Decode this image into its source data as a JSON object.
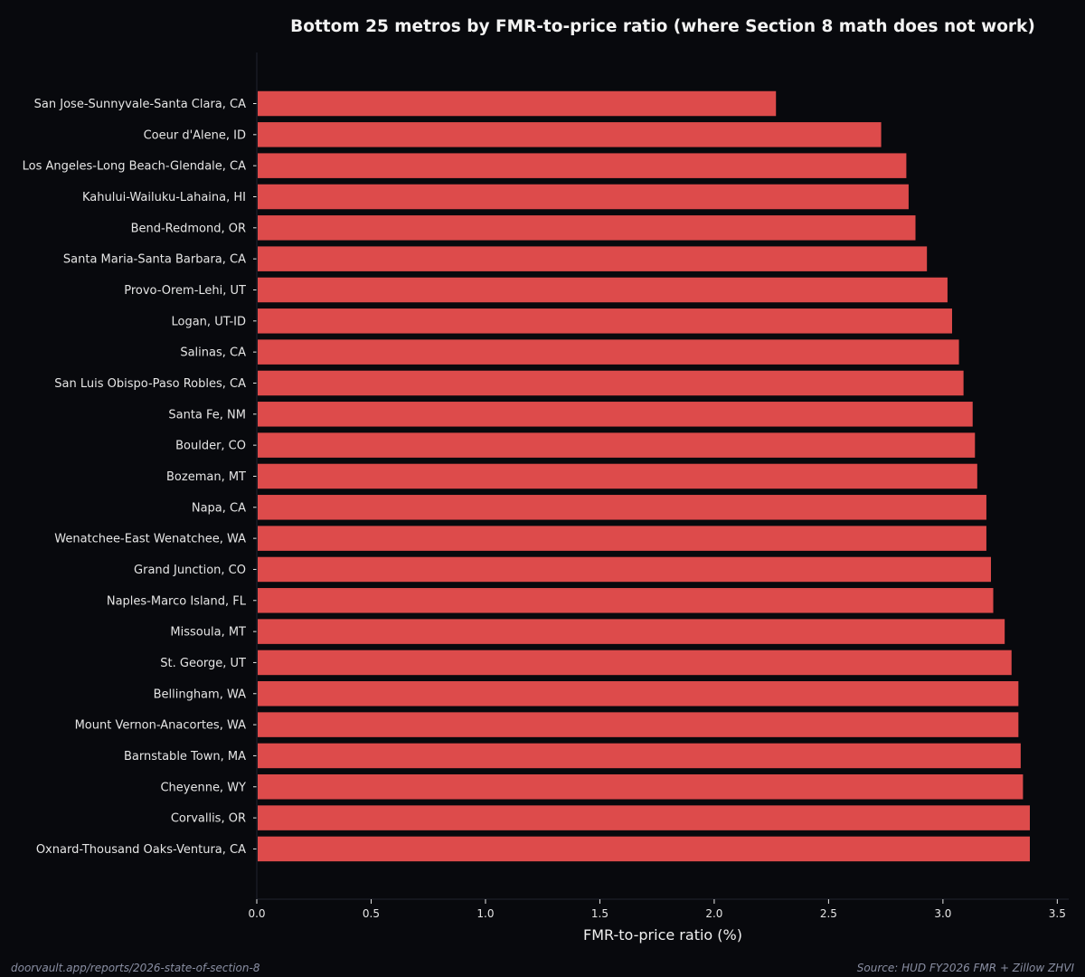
{
  "chart_data": {
    "type": "bar",
    "orientation": "horizontal",
    "title": "Bottom 25 metros by FMR-to-price ratio (where Section 8 math does not work)",
    "xlabel": "FMR-to-price ratio (%)",
    "ylabel": "",
    "xlim": [
      0,
      3.55
    ],
    "xticks": [
      "0.0",
      "0.5",
      "1.0",
      "1.5",
      "2.0",
      "2.5",
      "3.0",
      "3.5"
    ],
    "xtick_values": [
      0,
      0.5,
      1.0,
      1.5,
      2.0,
      2.5,
      3.0,
      3.5
    ],
    "grid": false,
    "bar_color": "#dd4b4b",
    "categories": [
      "San Jose-Sunnyvale-Santa Clara, CA",
      "Coeur d'Alene, ID",
      "Los Angeles-Long Beach-Glendale, CA",
      "Kahului-Wailuku-Lahaina, HI",
      "Bend-Redmond, OR",
      "Santa Maria-Santa Barbara, CA",
      "Provo-Orem-Lehi, UT",
      "Logan, UT-ID",
      "Salinas, CA",
      "San Luis Obispo-Paso Robles, CA",
      "Santa Fe, NM",
      "Boulder, CO",
      "Bozeman, MT",
      "Napa, CA",
      "Wenatchee-East Wenatchee, WA",
      "Grand Junction, CO",
      "Naples-Marco Island, FL",
      "Missoula, MT",
      "St. George, UT",
      "Bellingham, WA",
      "Mount Vernon-Anacortes, WA",
      "Barnstable Town, MA",
      "Cheyenne, WY",
      "Corvallis, OR",
      "Oxnard-Thousand Oaks-Ventura, CA"
    ],
    "values": [
      2.27,
      2.73,
      2.84,
      2.85,
      2.88,
      2.93,
      3.02,
      3.04,
      3.07,
      3.09,
      3.13,
      3.14,
      3.15,
      3.19,
      3.19,
      3.21,
      3.22,
      3.27,
      3.3,
      3.33,
      3.33,
      3.34,
      3.35,
      3.38,
      3.38
    ]
  },
  "footer": {
    "url": "doorvault.app/reports/2026-state-of-section-8",
    "source": "Source: HUD FY2026 FMR + Zillow ZHVI"
  }
}
